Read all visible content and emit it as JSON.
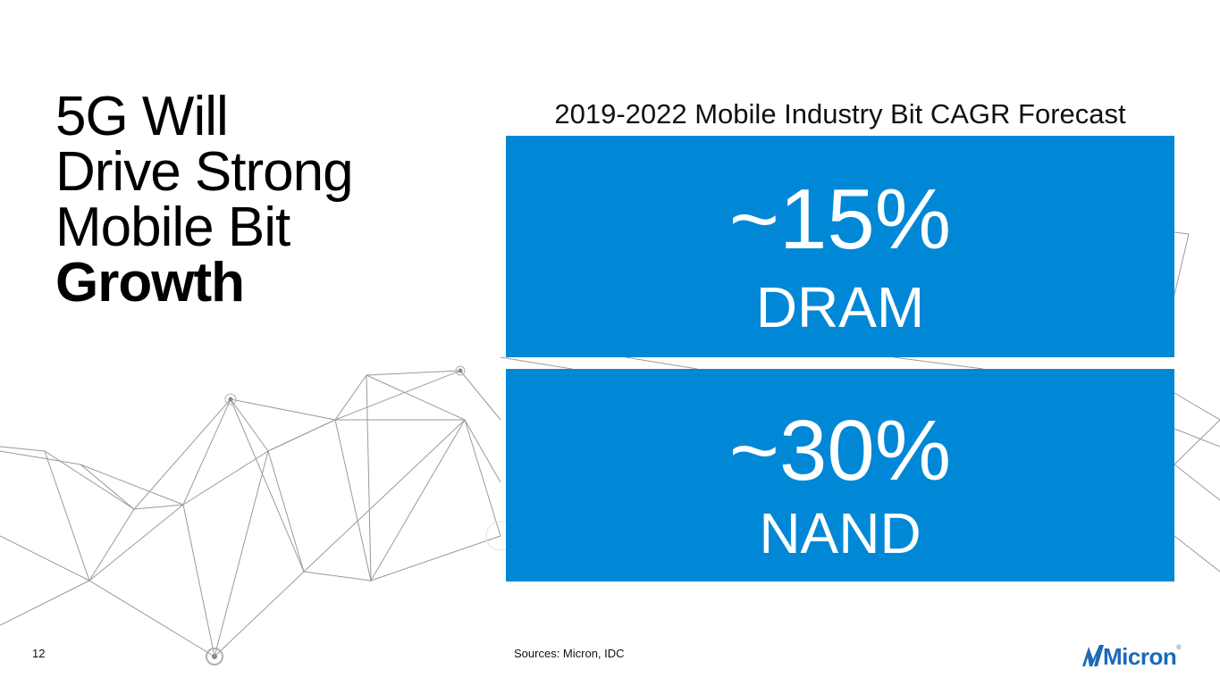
{
  "slide": {
    "title_lines": [
      "5G Will",
      "Drive Strong",
      "Mobile Bit"
    ],
    "title_bold": "Growth",
    "forecast_title": "2019-2022 Mobile Industry Bit CAGR Forecast",
    "metrics": [
      {
        "value": "~15%",
        "label": "DRAM"
      },
      {
        "value": "~30%",
        "label": "NAND"
      }
    ],
    "page_number": "12",
    "sources": "Sources: Micron, IDC",
    "logo_text": "Micron",
    "box_color": "#0088d6",
    "logo_color": "#1b6ab7"
  }
}
